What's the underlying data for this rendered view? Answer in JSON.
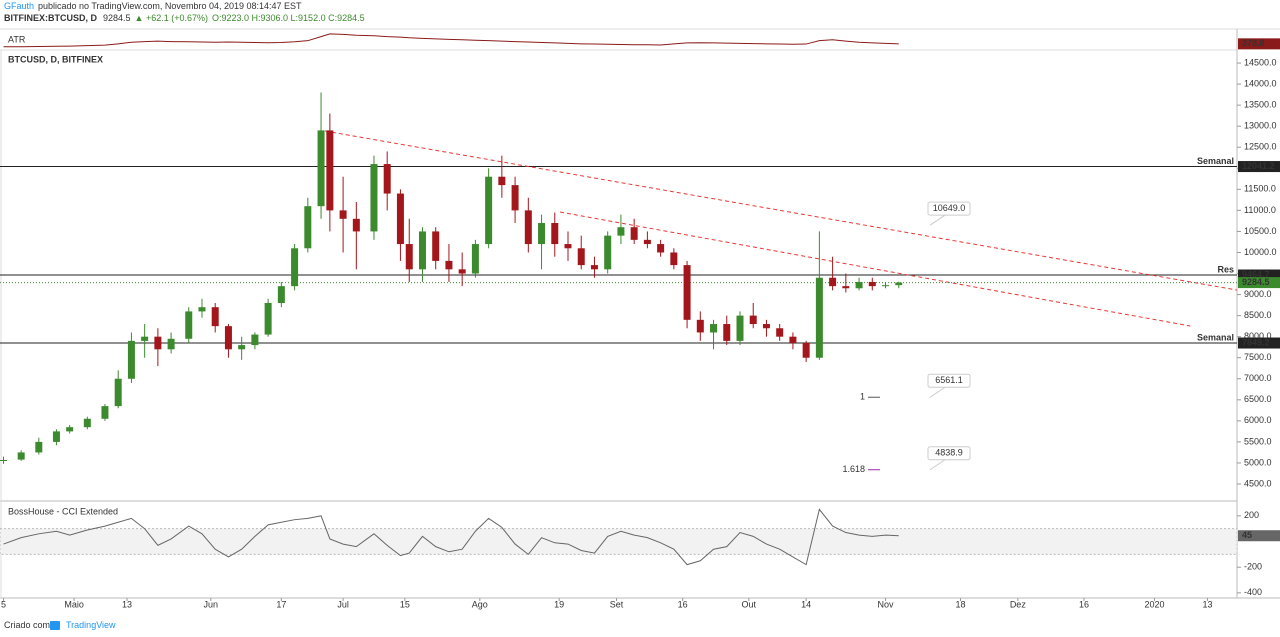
{
  "header": {
    "author": "GFauth",
    "published": "publicado no TradingView.com, Novembro 04, 2019 08:14:47 EST",
    "symbol": "BITFINEX:BTCUSD, D",
    "price": "9284.5",
    "change": "▲ +62.1 (+0.67%)",
    "ohlc": "O:9223.0 H:9306.0 L:9152.0 C:9284.5"
  },
  "footer": {
    "made_with": "Criado com",
    "brand": "TradingView"
  },
  "chart_data": [
    {
      "type": "candlestick",
      "title": "BTCUSD, D, BITFINEX",
      "up_color": "#3c8a2e",
      "down_color": "#a3161b",
      "x": [
        0,
        4,
        8,
        12,
        15,
        19,
        23,
        26,
        29,
        32,
        35,
        38,
        42,
        45,
        48,
        51,
        54,
        57,
        60,
        63,
        66,
        69,
        72,
        74,
        77,
        80,
        84,
        87,
        90,
        92,
        95,
        98,
        101,
        104,
        107,
        110,
        113,
        116,
        119,
        122,
        125,
        128,
        131,
        134,
        137,
        140,
        143,
        146,
        149,
        152,
        155,
        158,
        161,
        164,
        167,
        170,
        173,
        176,
        179,
        182,
        185,
        188,
        191,
        194,
        197,
        200,
        203
      ],
      "open": [
        5050,
        5080,
        5250,
        5500,
        5750,
        5850,
        6050,
        6350,
        7000,
        7900,
        8000,
        7700,
        7950,
        8600,
        8700,
        8250,
        7700,
        7800,
        8050,
        8800,
        9200,
        10100,
        11100,
        12900,
        11000,
        10800,
        10500,
        12100,
        11400,
        10200,
        9600,
        10500,
        9800,
        9600,
        9500,
        10200,
        11800,
        11600,
        11000,
        10200,
        10700,
        10200,
        10100,
        9700,
        9600,
        10400,
        10600,
        10300,
        10200,
        10000,
        9700,
        8400,
        8100,
        8300,
        7900,
        8500,
        8300,
        8200,
        8000,
        7850,
        7500,
        9400,
        9200,
        9150,
        9300,
        9200,
        9223
      ],
      "high": [
        5150,
        5300,
        5600,
        5800,
        5900,
        6100,
        6400,
        7200,
        8100,
        8300,
        8200,
        8100,
        8700,
        8900,
        8800,
        8300,
        8000,
        8100,
        8900,
        9300,
        10200,
        11300,
        13800,
        13300,
        11800,
        11200,
        12300,
        12400,
        11500,
        10800,
        10600,
        10600,
        10200,
        10000,
        10300,
        12000,
        12300,
        11800,
        11300,
        10900,
        10950,
        10500,
        10400,
        9900,
        10500,
        10900,
        10800,
        10500,
        10300,
        10100,
        9800,
        8600,
        8400,
        8500,
        8600,
        8800,
        8400,
        8300,
        8100,
        7900,
        10500,
        9900,
        9500,
        9400,
        9400,
        9300,
        9306
      ],
      "low": [
        4980,
        5050,
        5200,
        5420,
        5700,
        5800,
        6000,
        6300,
        6900,
        7500,
        7300,
        7600,
        7850,
        8450,
        8100,
        7500,
        7450,
        7700,
        8000,
        8700,
        9100,
        10000,
        10800,
        10500,
        10000,
        9600,
        10300,
        11000,
        9800,
        9300,
        9300,
        9600,
        9300,
        9200,
        9400,
        10100,
        11300,
        10700,
        10000,
        9600,
        9900,
        9800,
        9600,
        9400,
        9500,
        10200,
        10200,
        10100,
        9900,
        9600,
        8200,
        7900,
        7700,
        7800,
        7800,
        8200,
        8000,
        7900,
        7700,
        7400,
        7450,
        9100,
        9050,
        9100,
        9100,
        9150,
        9152
      ],
      "close": [
        5070,
        5250,
        5500,
        5750,
        5850,
        6050,
        6350,
        7000,
        7900,
        8000,
        7700,
        7950,
        8600,
        8700,
        8250,
        7700,
        7800,
        8050,
        8800,
        9200,
        10100,
        11100,
        12900,
        11000,
        10800,
        10500,
        12100,
        11400,
        10200,
        9600,
        10500,
        9800,
        9600,
        9500,
        10200,
        11800,
        11600,
        11000,
        10200,
        10700,
        10200,
        10100,
        9700,
        9600,
        10400,
        10600,
        10300,
        10200,
        10000,
        9700,
        8400,
        8100,
        8300,
        7900,
        8500,
        8300,
        8200,
        8000,
        7850,
        7500,
        9400,
        9200,
        9150,
        9300,
        9200,
        9223,
        9284.5
      ],
      "xlim": [
        -0.8,
        279.7
      ],
      "xticks": [
        {
          "value": 0,
          "label": "5"
        },
        {
          "value": 16,
          "label": "Maio"
        },
        {
          "value": 28,
          "label": "13"
        },
        {
          "value": 47,
          "label": "Jun"
        },
        {
          "value": 63,
          "label": "17"
        },
        {
          "value": 77,
          "label": "Jul"
        },
        {
          "value": 91,
          "label": "15"
        },
        {
          "value": 108,
          "label": "Ago"
        },
        {
          "value": 126,
          "label": "19"
        },
        {
          "value": 139,
          "label": "Set"
        },
        {
          "value": 154,
          "label": "16"
        },
        {
          "value": 169,
          "label": "Out"
        },
        {
          "value": 182,
          "label": "14"
        },
        {
          "value": 200,
          "label": "Nov"
        },
        {
          "value": 217,
          "label": "18"
        },
        {
          "value": 230,
          "label": "Dez"
        },
        {
          "value": 245,
          "label": "16"
        },
        {
          "value": 261,
          "label": "2020"
        },
        {
          "value": 273,
          "label": "13"
        }
      ],
      "ylim": [
        4120,
        14810
      ],
      "yticks": [
        {
          "value": 4500,
          "label": "4500.0"
        },
        {
          "value": 5000,
          "label": "5000.0"
        },
        {
          "value": 5500,
          "label": "5500.0"
        },
        {
          "value": 6000,
          "label": "6000.0"
        },
        {
          "value": 6500,
          "label": "6500.0"
        },
        {
          "value": 7000,
          "label": "7000.0"
        },
        {
          "value": 7500,
          "label": "7500.0"
        },
        {
          "value": 8000,
          "label": "8000.0"
        },
        {
          "value": 8500,
          "label": "8500.0"
        },
        {
          "value": 9000,
          "label": "9000.0"
        },
        {
          "value": 9500,
          "label": "9500.0"
        },
        {
          "value": 10000,
          "label": "10000.0"
        },
        {
          "value": 10500,
          "label": "10500.0"
        },
        {
          "value": 11000,
          "label": "11000.0"
        },
        {
          "value": 11500,
          "label": "11500.0"
        },
        {
          "value": 12000,
          "label": "12000.0"
        },
        {
          "value": 12500,
          "label": "12500.0"
        },
        {
          "value": 13000,
          "label": "13000.0"
        },
        {
          "value": 13500,
          "label": "13500.0"
        },
        {
          "value": 14000,
          "label": "14000.0"
        },
        {
          "value": 14500,
          "label": "14500.0"
        }
      ],
      "levels": [
        {
          "value": 12041.2,
          "note": "Semanal",
          "note_color": "#e67e22",
          "color": "#222"
        },
        {
          "value": 9464.7,
          "note": "Res",
          "note_color": "#e53935",
          "color": "#222"
        },
        {
          "value": 7849.2,
          "note": "Semanal",
          "note_color": "#e67e22",
          "color": "#222"
        }
      ],
      "last_price_color": "#3c8a2e",
      "trend_lines": [
        {
          "from": [
            72.9,
            12885
          ],
          "to": [
            279.7,
            9108
          ],
          "color": "#e53935"
        },
        {
          "from": [
            126.2,
            10961
          ],
          "to": [
            269.1,
            8253
          ],
          "color": "#e53935"
        }
      ],
      "fib": [
        {
          "price": {
            "value": 10649,
            "label": "10649.0"
          }
        },
        {
          "price": 6561.1,
          "level": "1",
          "color": "#555"
        },
        {
          "price": 4838.9,
          "level": "1.618",
          "color": "#9c27b0"
        }
      ]
    },
    {
      "type": "line",
      "title": "ATR",
      "color": "#8b1a1a",
      "x": [
        0,
        4,
        8,
        12,
        15,
        19,
        23,
        26,
        29,
        32,
        35,
        38,
        42,
        45,
        48,
        51,
        54,
        57,
        60,
        63,
        66,
        69,
        72,
        74,
        77,
        80,
        84,
        87,
        90,
        92,
        95,
        98,
        101,
        104,
        107,
        110,
        113,
        116,
        119,
        122,
        125,
        128,
        131,
        134,
        137,
        140,
        143,
        146,
        149,
        152,
        155,
        158,
        161,
        164,
        167,
        170,
        173,
        176,
        179,
        182,
        185,
        188,
        191,
        194,
        197,
        200,
        203
      ],
      "values": [
        250,
        250,
        260,
        270,
        280,
        300,
        320,
        380,
        450,
        480,
        500,
        480,
        470,
        460,
        450,
        460,
        450,
        440,
        430,
        440,
        470,
        520,
        700,
        820,
        800,
        760,
        740,
        700,
        680,
        650,
        620,
        600,
        580,
        560,
        540,
        520,
        500,
        480,
        460,
        440,
        420,
        400,
        380,
        370,
        360,
        350,
        340,
        340,
        330,
        380,
        420,
        430,
        420,
        410,
        400,
        390,
        380,
        370,
        360,
        370,
        520,
        560,
        500,
        450,
        420,
        400,
        378.8
      ],
      "xlim": [
        -0.8,
        279.7
      ],
      "ylim": [
        150,
        950
      ]
    },
    {
      "type": "line",
      "title": "BossHouse - CCI Extended",
      "color": "#666",
      "band": [
        -100,
        100
      ],
      "x": [
        0,
        4,
        8,
        12,
        15,
        19,
        23,
        26,
        29,
        32,
        35,
        38,
        42,
        45,
        48,
        51,
        54,
        57,
        60,
        63,
        66,
        69,
        72,
        74,
        77,
        80,
        84,
        87,
        90,
        92,
        95,
        98,
        101,
        104,
        107,
        110,
        113,
        116,
        119,
        122,
        125,
        128,
        131,
        134,
        137,
        140,
        143,
        146,
        149,
        152,
        155,
        158,
        161,
        164,
        167,
        170,
        173,
        176,
        179,
        182,
        185,
        188,
        191,
        194,
        197,
        200,
        203
      ],
      "values": [
        -20,
        30,
        60,
        80,
        50,
        90,
        120,
        150,
        180,
        100,
        -30,
        20,
        120,
        60,
        -60,
        -120,
        -60,
        40,
        130,
        150,
        170,
        180,
        200,
        20,
        -20,
        -40,
        60,
        -30,
        -110,
        -90,
        40,
        -40,
        -80,
        -60,
        80,
        180,
        110,
        -20,
        -100,
        30,
        -10,
        -20,
        -70,
        -90,
        40,
        80,
        50,
        30,
        -10,
        -60,
        -180,
        -150,
        -60,
        -40,
        70,
        40,
        -20,
        -60,
        -120,
        -180,
        250,
        120,
        70,
        50,
        40,
        50,
        45
      ],
      "xlim": [
        -0.8,
        279.7
      ],
      "ylim": [
        -440,
        300
      ],
      "yticks": [
        200,
        -200,
        -400
      ]
    }
  ]
}
